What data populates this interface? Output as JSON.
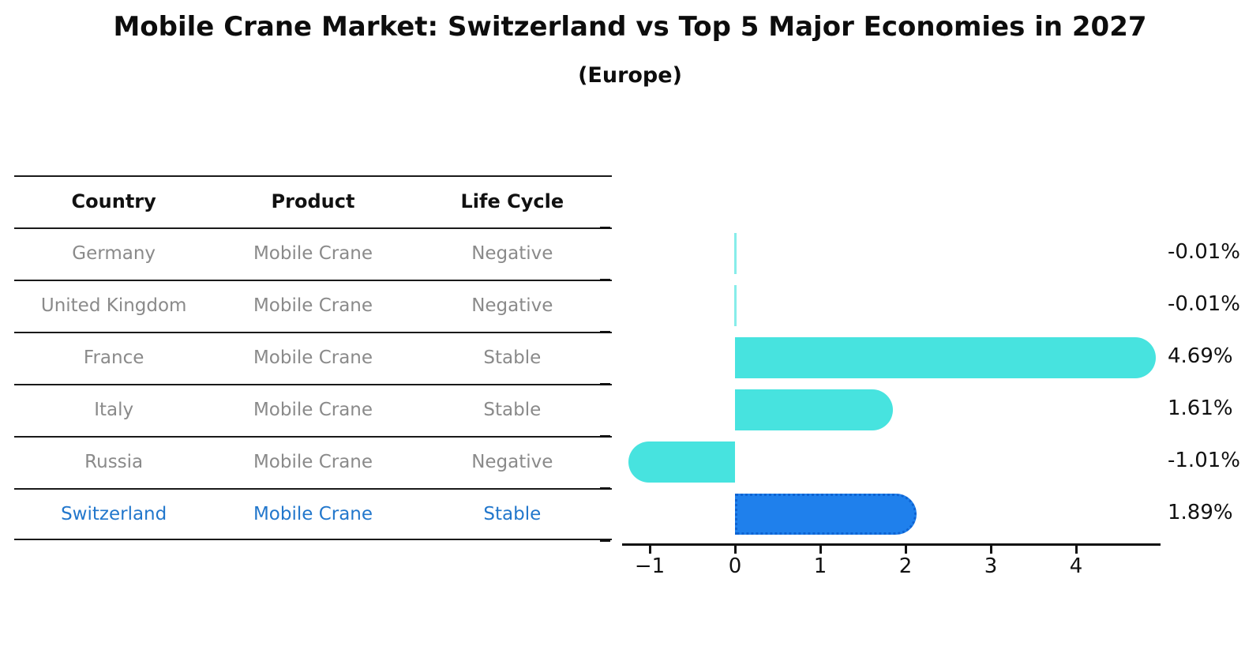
{
  "title": "Mobile Crane Market: Switzerland vs Top 5 Major Economies in 2027",
  "subtitle": "(Europe)",
  "table": {
    "headers": [
      "Country",
      "Product",
      "Life Cycle"
    ],
    "rows": [
      {
        "country": "Germany",
        "product": "Mobile Crane",
        "life_cycle": "Negative",
        "highlight": false
      },
      {
        "country": "United Kingdom",
        "product": "Mobile Crane",
        "life_cycle": "Negative",
        "highlight": false
      },
      {
        "country": "France",
        "product": "Mobile Crane",
        "life_cycle": "Stable",
        "highlight": false
      },
      {
        "country": "Italy",
        "product": "Mobile Crane",
        "life_cycle": "Stable",
        "highlight": false
      },
      {
        "country": "Russia",
        "product": "Mobile Crane",
        "life_cycle": "Negative",
        "highlight": false
      },
      {
        "country": "Switzerland",
        "product": "Mobile Crane",
        "life_cycle": "Stable",
        "highlight": true
      }
    ]
  },
  "chart_data": {
    "type": "bar",
    "orientation": "horizontal",
    "title": "Mobile Crane Market: Switzerland vs Top 5 Major Economies in 2027",
    "subtitle": "(Europe)",
    "categories": [
      "Germany",
      "United Kingdom",
      "France",
      "Italy",
      "Russia",
      "Switzerland"
    ],
    "values": [
      -0.01,
      -0.01,
      4.69,
      1.61,
      -1.01,
      1.89
    ],
    "value_labels": [
      "-0.01%",
      "-0.01%",
      "4.69%",
      "1.61%",
      "-1.01%",
      "1.89%"
    ],
    "x_tick_values": [
      -1,
      0,
      1,
      2,
      3,
      4
    ],
    "x_tick_labels": [
      "−1",
      "0",
      "1",
      "2",
      "3",
      "4"
    ],
    "xlim": [
      -1.32,
      4.99
    ],
    "grid": false,
    "legend": null,
    "highlight_category": "Switzerland",
    "bar_color": "#47E3DF",
    "highlight_bar_color": "#1F80EC",
    "highlight_bar_border": "#0E63D2"
  },
  "colors": {
    "bar_cyan": "#47E3DF",
    "bar_blue": "#1F80EC",
    "bar_blue_border": "#0E63D2",
    "highlight_text": "#2277CC",
    "table_text_gray": "#8a8a8a",
    "ink": "#111111"
  }
}
